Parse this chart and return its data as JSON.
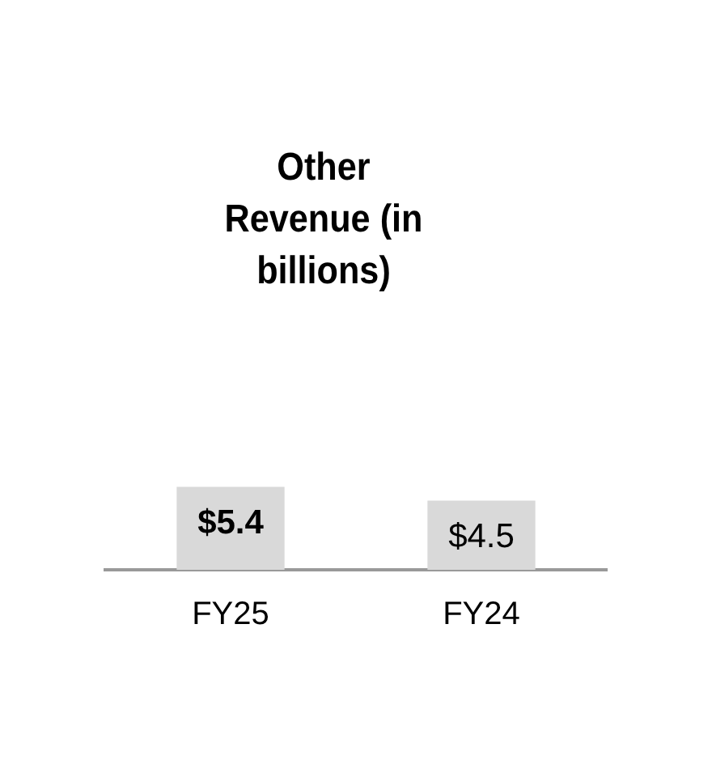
{
  "chart_data": {
    "type": "bar",
    "title": "Other Revenue (in billions)",
    "categories": [
      "FY25",
      "FY24"
    ],
    "values": [
      5.4,
      4.5
    ],
    "color": "#d9d9d9",
    "value_labels": [
      "$5.4",
      "$4.5"
    ],
    "grid": false,
    "legend": false
  }
}
